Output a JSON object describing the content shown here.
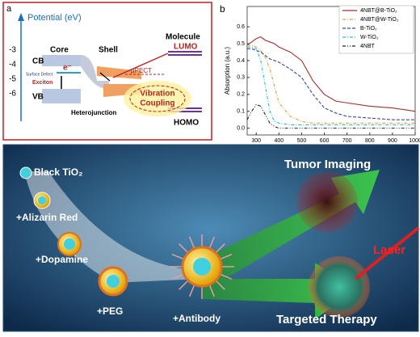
{
  "panel_a": {
    "label": "a",
    "axis_title": "Potential (eV)",
    "ticks": [
      "-3",
      "-4",
      "-5",
      "-6"
    ],
    "cb": "CB",
    "vb": "VB",
    "core": "Core",
    "shell": "Shell",
    "molecule": "Molecule",
    "lumo": "LUMO",
    "homo": "HOMO",
    "electron": "e⁻",
    "surface_defect": "Surface Defect",
    "exciton": "Exciton",
    "mu": "μPECT",
    "heterojunction": "Heterojunction",
    "vibration": "Vibration",
    "coupling": "Coupling"
  },
  "chart_data": {
    "type": "line",
    "panel_label": "b",
    "xlabel": "Wavelength (nm)",
    "ylabel": "Absorption (a.u.)",
    "x": [
      260,
      280,
      300,
      320,
      340,
      360,
      380,
      400,
      450,
      500,
      550,
      600,
      650,
      700,
      800,
      900,
      1000
    ],
    "xlim": [
      260,
      1000
    ],
    "xticks": [
      300,
      400,
      500,
      600,
      700,
      800,
      900,
      1000
    ],
    "ylim": [
      -0.04,
      0.72
    ],
    "yticks": [
      {
        "value": 0,
        "label": "0.0"
      },
      0.1,
      0.2,
      0.3,
      0.4,
      0.5,
      0.6
    ],
    "series": [
      {
        "name": "4NBT@B-TiO₂",
        "color": "#a3302f",
        "dash": "solid",
        "values": [
          0.49,
          0.51,
          0.53,
          0.54,
          0.52,
          0.51,
          0.5,
          0.48,
          0.45,
          0.4,
          0.28,
          0.2,
          0.16,
          0.15,
          0.13,
          0.12,
          0.1
        ]
      },
      {
        "name": "4NBT@W-TiO₂",
        "color": "#e0a040",
        "dash": "dashdot",
        "values": [
          0.49,
          0.49,
          0.48,
          0.46,
          0.42,
          0.35,
          0.25,
          0.15,
          0.07,
          0.04,
          0.03,
          0.03,
          0.03,
          0.03,
          0.03,
          0.03,
          0.03
        ]
      },
      {
        "name": "B-TiO₂",
        "color": "#3a4a9a",
        "dash": "dash",
        "values": [
          0.47,
          0.47,
          0.46,
          0.45,
          0.43,
          0.41,
          0.4,
          0.39,
          0.35,
          0.3,
          0.2,
          0.12,
          0.09,
          0.07,
          0.06,
          0.05,
          0.05
        ]
      },
      {
        "name": "W-TiO₂",
        "color": "#30c0d0",
        "dash": "dashdot",
        "values": [
          0.48,
          0.48,
          0.47,
          0.4,
          0.25,
          0.1,
          0.04,
          0.03,
          0.02,
          0.02,
          0.02,
          0.02,
          0.02,
          0.02,
          0.02,
          0.02,
          0.02
        ]
      },
      {
        "name": "4NBT",
        "color": "#222222",
        "dash": "dashdotdot",
        "values": [
          0.05,
          0.1,
          0.14,
          0.13,
          0.08,
          0.03,
          0.01,
          0,
          0,
          0,
          0,
          0,
          0,
          0,
          0,
          0,
          0
        ]
      }
    ]
  },
  "panel_c": {
    "black_tio2": "Black TiO₂",
    "alizarin": "+Alizarin Red",
    "dopamine": "+Dopamine",
    "peg": "+PEG",
    "antibody": "+Antibody",
    "tumor_imaging": "Tumor Imaging",
    "laser": "Laser",
    "therapy": "Targeted Therapy"
  }
}
